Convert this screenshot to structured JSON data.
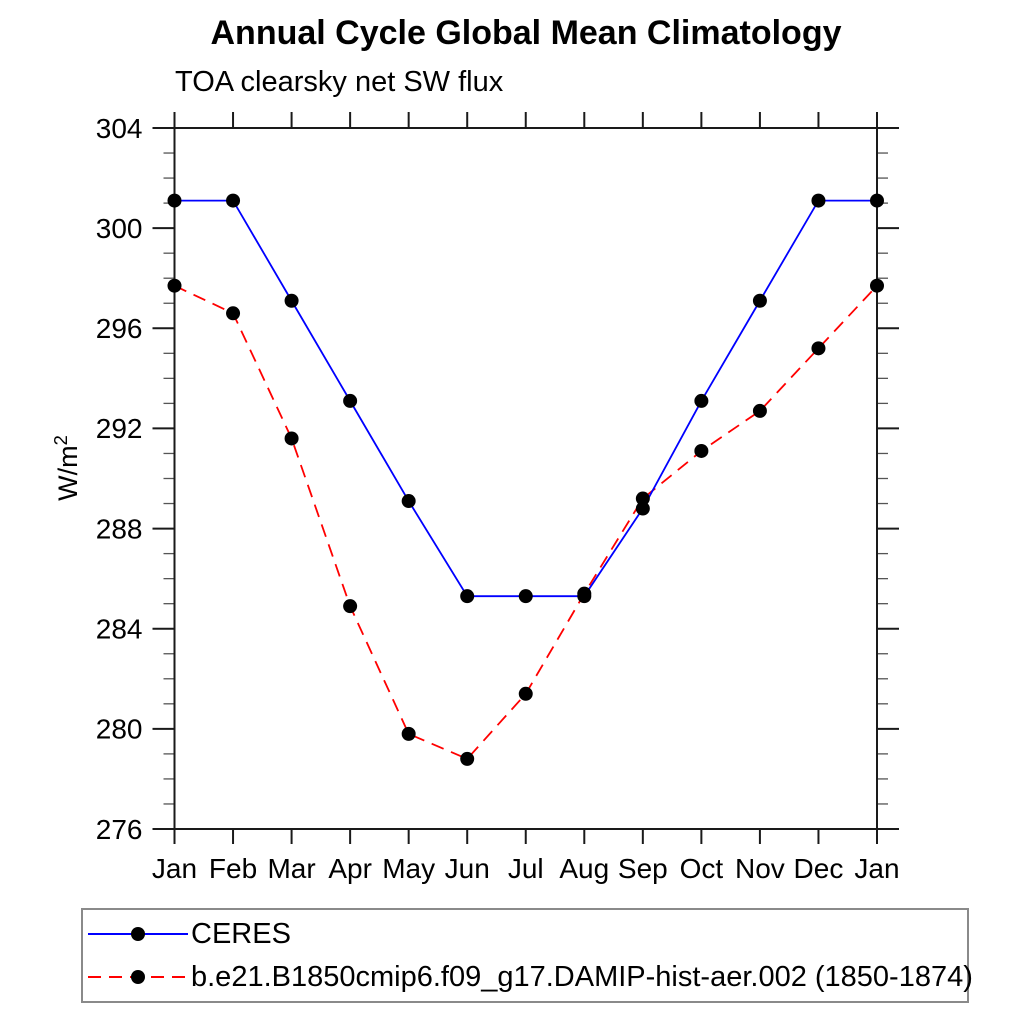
{
  "title": "Annual Cycle Global Mean Climatology",
  "subtitle": "TOA clearsky net SW flux",
  "y_axis": {
    "label_base": "W/m",
    "label_exponent": "2"
  },
  "chart_data": {
    "type": "line",
    "title": "Annual Cycle Global Mean Climatology",
    "subtitle": "TOA clearsky net SW flux",
    "xlabel": "",
    "ylabel": "W/m²",
    "categories": [
      "Jan",
      "Feb",
      "Mar",
      "Apr",
      "May",
      "Jun",
      "Jul",
      "Aug",
      "Sep",
      "Oct",
      "Nov",
      "Dec",
      "Jan"
    ],
    "series": [
      {
        "name": "CERES",
        "color": "#0000ff",
        "line_style": "solid",
        "marker": "filled-black-circle",
        "values": [
          301.1,
          301.1,
          297.1,
          293.1,
          289.1,
          285.3,
          285.3,
          285.3,
          288.8,
          293.1,
          297.1,
          301.1,
          301.1
        ]
      },
      {
        "name": "b.e21.B1850cmip6.f09_g17.DAMIP-hist-aer.002 (1850-1874)",
        "color": "#ff0000",
        "line_style": "dashed",
        "marker": "filled-black-circle",
        "values": [
          297.7,
          296.6,
          291.6,
          284.9,
          279.8,
          278.8,
          281.4,
          285.4,
          289.2,
          291.1,
          292.7,
          295.2,
          297.7
        ]
      }
    ],
    "ylim": [
      276,
      304
    ],
    "ytick_major": [
      276,
      280,
      284,
      288,
      292,
      296,
      300,
      304
    ],
    "ytick_minor_step": 1,
    "grid": false,
    "frame": "box-with-outward-ticks",
    "legend_position": "bottom-left-boxed"
  }
}
